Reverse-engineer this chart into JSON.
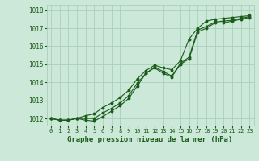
{
  "title": "Graphe pression niveau de la mer (hPa)",
  "bg_color": "#cce8d8",
  "grid_color": "#aacfba",
  "line_color": "#1a5c1a",
  "xlim": [
    -0.5,
    23.5
  ],
  "ylim": [
    1011.6,
    1018.3
  ],
  "yticks": [
    1012,
    1013,
    1014,
    1015,
    1016,
    1017,
    1018
  ],
  "xticks": [
    0,
    1,
    2,
    3,
    4,
    5,
    6,
    7,
    8,
    9,
    10,
    11,
    12,
    13,
    14,
    15,
    16,
    17,
    18,
    19,
    20,
    21,
    22,
    23
  ],
  "series1_y": [
    1012.0,
    1011.9,
    1011.9,
    1012.0,
    1011.9,
    1011.85,
    1012.1,
    1012.4,
    1012.7,
    1013.1,
    1013.8,
    1014.5,
    1014.8,
    1014.5,
    1014.3,
    1015.0,
    1015.3,
    1016.8,
    1017.0,
    1017.3,
    1017.3,
    1017.4,
    1017.5,
    1017.6
  ],
  "series2_y": [
    1012.0,
    1011.9,
    1011.9,
    1012.0,
    1012.0,
    1012.0,
    1012.3,
    1012.55,
    1012.85,
    1013.25,
    1013.95,
    1014.5,
    1014.85,
    1014.6,
    1014.35,
    1015.05,
    1015.4,
    1016.9,
    1017.1,
    1017.35,
    1017.4,
    1017.45,
    1017.55,
    1017.65
  ],
  "series3_y": [
    1012.0,
    1011.9,
    1011.9,
    1012.0,
    1012.15,
    1012.25,
    1012.6,
    1012.85,
    1013.15,
    1013.55,
    1014.2,
    1014.65,
    1014.95,
    1014.8,
    1014.7,
    1015.2,
    1016.4,
    1017.0,
    1017.4,
    1017.5,
    1017.55,
    1017.6,
    1017.65,
    1017.7
  ],
  "marker_size": 1.8,
  "line_width": 0.8,
  "tick_fontsize": 5.5,
  "xlabel_fontsize": 6.5,
  "xtick_fontsize": 5.0
}
